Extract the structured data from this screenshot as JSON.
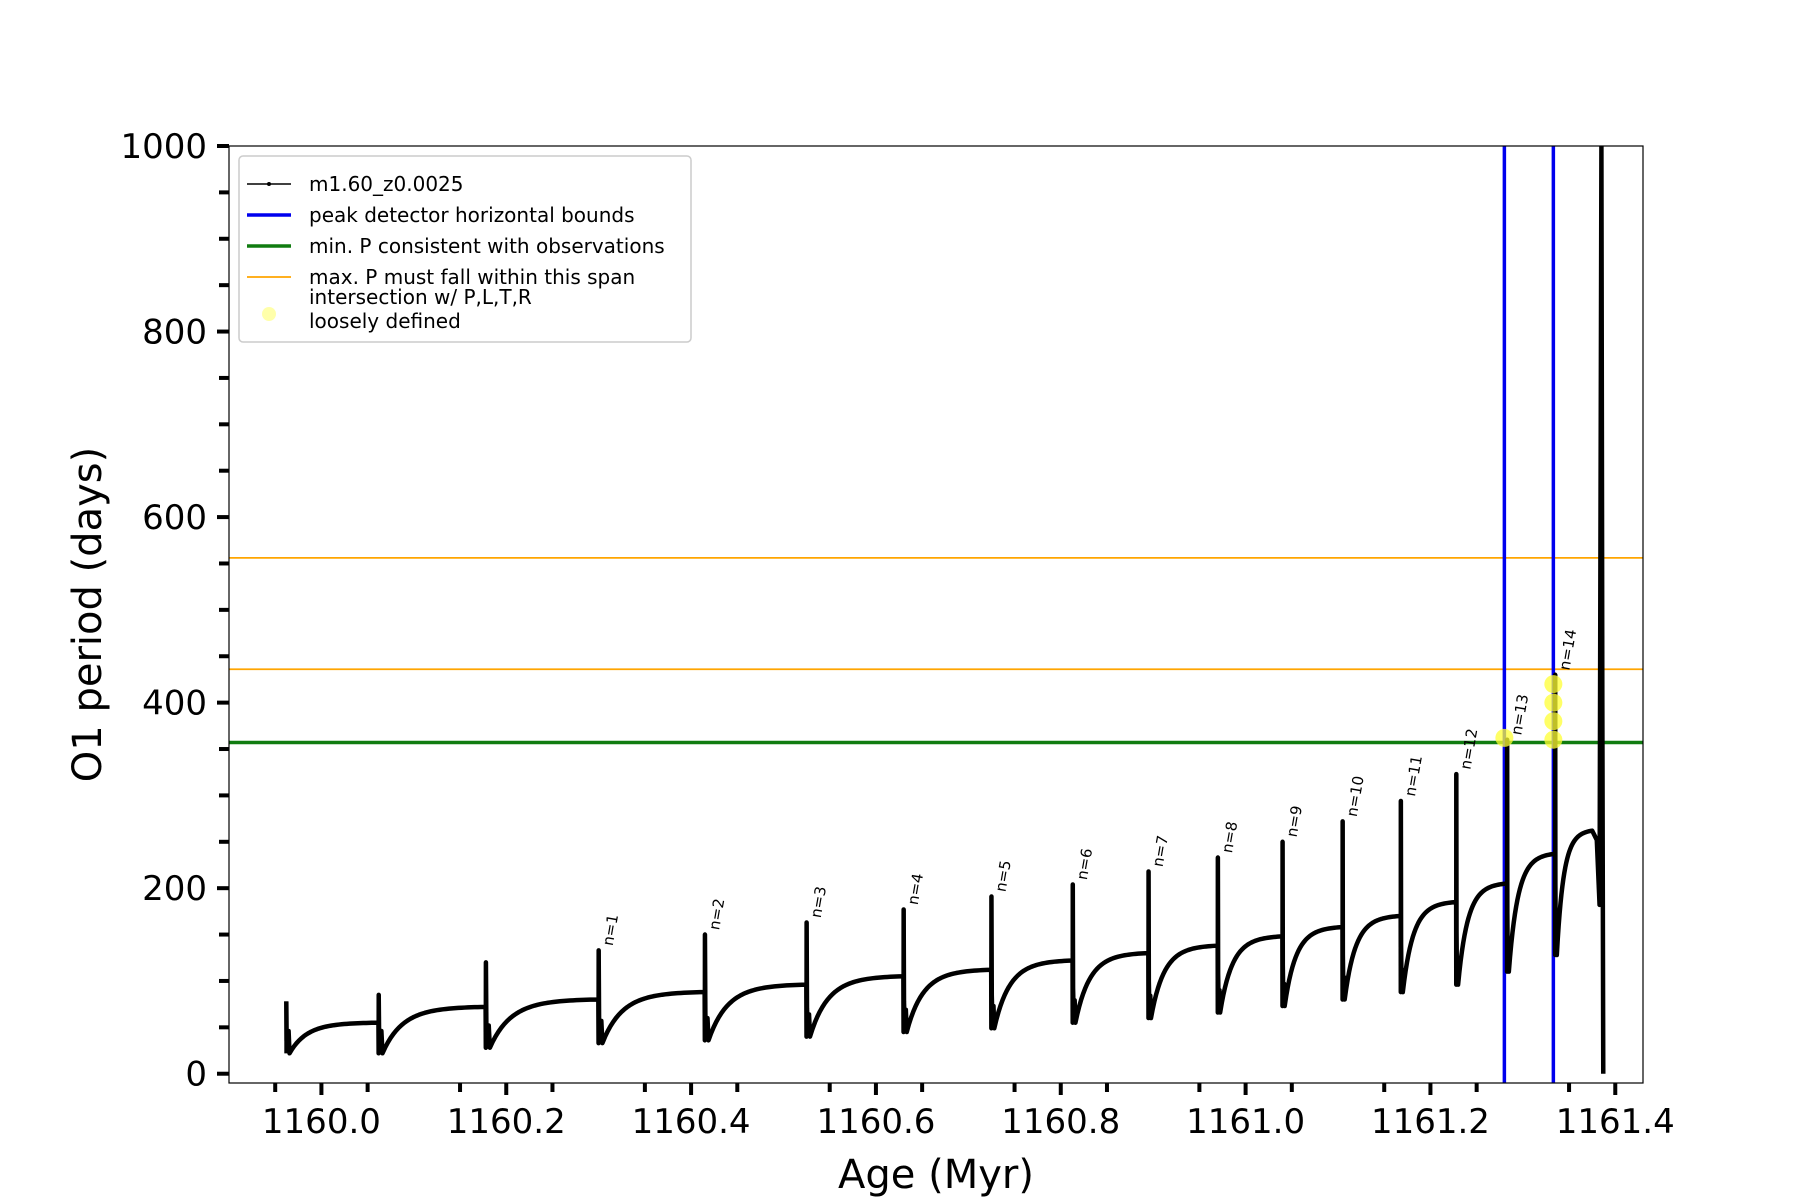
{
  "chart_data": {
    "type": "line",
    "title": "",
    "xlabel": "Age (Myr)",
    "ylabel": "O1 period (days)",
    "xlim": [
      1159.9,
      1161.43
    ],
    "ylim": [
      -10,
      1000
    ],
    "xticks": [
      1160.0,
      1160.2,
      1160.4,
      1160.6,
      1160.8,
      1161.0,
      1161.2,
      1161.4
    ],
    "xtick_labels": [
      "1160.0",
      "1160.2",
      "1160.4",
      "1160.6",
      "1160.8",
      "1161.0",
      "1161.2",
      "1161.4"
    ],
    "yticks": [
      0,
      200,
      400,
      600,
      800,
      1000
    ],
    "ytick_labels": [
      "0",
      "200",
      "400",
      "600",
      "800",
      "1000"
    ],
    "grid": false,
    "legend_position": "top-left",
    "series": [
      {
        "name": "m1.60_z0.0025",
        "color": "#000000",
        "pulses": [
          {
            "age": 1159.962,
            "spike": 78,
            "dip": 22,
            "end": 55
          },
          {
            "age": 1160.062,
            "spike": 85,
            "dip": 22,
            "end": 72
          },
          {
            "age": 1160.178,
            "spike": 120,
            "dip": 28,
            "end": 80
          },
          {
            "age": 1160.3,
            "spike": 133,
            "dip": 33,
            "end": 88
          },
          {
            "age": 1160.415,
            "spike": 150,
            "dip": 36,
            "end": 96
          },
          {
            "age": 1160.525,
            "spike": 163,
            "dip": 40,
            "end": 105
          },
          {
            "age": 1160.63,
            "spike": 177,
            "dip": 45,
            "end": 112
          },
          {
            "age": 1160.725,
            "spike": 191,
            "dip": 49,
            "end": 122
          },
          {
            "age": 1160.813,
            "spike": 204,
            "dip": 55,
            "end": 130
          },
          {
            "age": 1160.895,
            "spike": 218,
            "dip": 60,
            "end": 138
          },
          {
            "age": 1160.97,
            "spike": 233,
            "dip": 66,
            "end": 148
          },
          {
            "age": 1161.04,
            "spike": 250,
            "dip": 73,
            "end": 158
          },
          {
            "age": 1161.105,
            "spike": 272,
            "dip": 80,
            "end": 170
          },
          {
            "age": 1161.168,
            "spike": 294,
            "dip": 88,
            "end": 185
          },
          {
            "age": 1161.228,
            "spike": 323,
            "dip": 96,
            "end": 205
          },
          {
            "age": 1161.283,
            "spike": 360,
            "dip": 110,
            "end": 237
          },
          {
            "age": 1161.335,
            "spike": 430,
            "dip": 128,
            "end": 262
          }
        ],
        "final_age": 1161.385,
        "final_value": 0
      }
    ],
    "peak_labels": [
      {
        "text": "n=1",
        "age": 1160.3,
        "value": 133
      },
      {
        "text": "n=2",
        "age": 1160.415,
        "value": 150
      },
      {
        "text": "n=3",
        "age": 1160.525,
        "value": 163
      },
      {
        "text": "n=4",
        "age": 1160.63,
        "value": 177
      },
      {
        "text": "n=5",
        "age": 1160.725,
        "value": 191
      },
      {
        "text": "n=6",
        "age": 1160.813,
        "value": 204
      },
      {
        "text": "n=7",
        "age": 1160.895,
        "value": 218
      },
      {
        "text": "n=8",
        "age": 1160.97,
        "value": 233
      },
      {
        "text": "n=9",
        "age": 1161.04,
        "value": 250
      },
      {
        "text": "n=10",
        "age": 1161.105,
        "value": 272
      },
      {
        "text": "n=11",
        "age": 1161.168,
        "value": 294
      },
      {
        "text": "n=12",
        "age": 1161.228,
        "value": 323
      },
      {
        "text": "n=13",
        "age": 1161.283,
        "value": 360
      },
      {
        "text": "n=14",
        "age": 1161.335,
        "value": 430
      }
    ],
    "vertical_lines": {
      "label": "peak detector horizontal bounds",
      "color": "#0000ee",
      "ages": [
        1161.28,
        1161.333
      ]
    },
    "min_period_line": {
      "label": "min. P consistent with observations",
      "color": "#107c10",
      "value": 357
    },
    "max_period_lines": {
      "label": "max. P must fall within this span",
      "color": "#ffa500",
      "values": [
        436,
        556
      ]
    },
    "intersections": {
      "label": "intersection w/ P,L,T,R\nloosely defined",
      "color": "#ffff33",
      "points": [
        {
          "age": 1161.28,
          "value": 362
        },
        {
          "age": 1161.333,
          "value": 360
        },
        {
          "age": 1161.333,
          "value": 380
        },
        {
          "age": 1161.333,
          "value": 400
        },
        {
          "age": 1161.333,
          "value": 420
        }
      ]
    },
    "legend": [
      {
        "label": "m1.60_z0.0025",
        "color": "#000000",
        "kind": "line-marker"
      },
      {
        "label": "peak detector horizontal bounds",
        "color": "#0000ee",
        "kind": "thick-line"
      },
      {
        "label": "min. P consistent with observations",
        "color": "#107c10",
        "kind": "thick-line"
      },
      {
        "label": "max. P must fall within this span",
        "color": "#ffa500",
        "kind": "thin-line"
      },
      {
        "label": "intersection w/ P,L,T,R\nloosely defined",
        "color": "#ffffaa",
        "kind": "dot"
      }
    ]
  }
}
